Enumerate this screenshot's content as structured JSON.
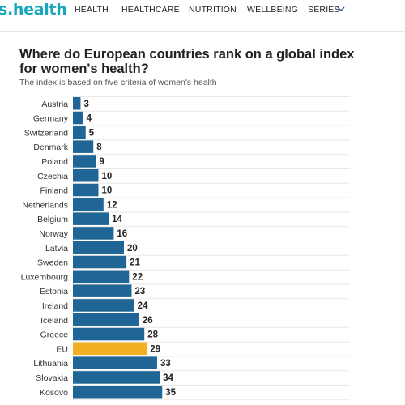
{
  "header": {
    "logo": "s.health",
    "nav": [
      "HEALTH",
      "HEALTHCARE",
      "NUTRITION",
      "WELLBEING",
      "SERIES"
    ]
  },
  "colors": {
    "bar": "#1f6595",
    "highlight": "#f2b021",
    "brand": "#1aa6bf"
  },
  "chart_data": {
    "type": "bar",
    "orientation": "horizontal",
    "title": "Where do European countries rank on a global index for women's health?",
    "subtitle": "The index is based on five criteria of women's health",
    "categories": [
      "Austria",
      "Germany",
      "Switzerland",
      "Denmark",
      "Poland",
      "Czechia",
      "Finland",
      "Netherlands",
      "Belgium",
      "Norway",
      "Latvia",
      "Sweden",
      "Luxembourg",
      "Estonia",
      "Ireland",
      "Iceland",
      "Greece",
      "EU",
      "Lithuania",
      "Slovakia",
      "Kosovo"
    ],
    "values": [
      3,
      4,
      5,
      8,
      9,
      10,
      10,
      12,
      14,
      16,
      20,
      21,
      22,
      23,
      24,
      26,
      28,
      29,
      33,
      34,
      35
    ],
    "highlight": "EU",
    "grid": true
  }
}
